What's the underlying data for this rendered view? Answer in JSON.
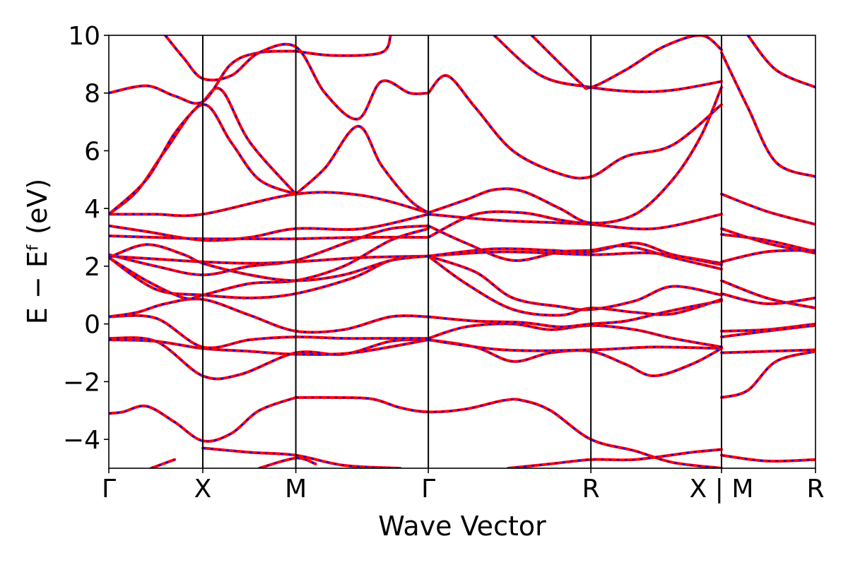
{
  "chart_data": {
    "type": "line",
    "xlabel": "Wave Vector",
    "ylabel": "E − Eᶠ (eV)",
    "ylim": [
      -5,
      10
    ],
    "yticks": [
      -4,
      -2,
      0,
      2,
      4,
      6,
      8,
      10
    ],
    "ytick_labels": [
      "−4",
      "−2",
      "0",
      "2",
      "4",
      "6",
      "8",
      "10"
    ],
    "xlim": [
      0,
      7.52
    ],
    "kpoints": [
      {
        "label": "Γ",
        "x": 0
      },
      {
        "label": "X",
        "x": 1
      },
      {
        "label": "M",
        "x": 1.99
      },
      {
        "label": "Γ",
        "x": 3.4
      },
      {
        "label": "R",
        "x": 5.13
      },
      {
        "label": "X | M",
        "x": 6.52
      },
      {
        "label": "R",
        "x": 7.52
      }
    ],
    "series_colors": {
      "reference": "#ff0000",
      "comparison": "#0000ff"
    },
    "grid": false,
    "bands": [
      {
        "x": [
          0,
          0.15,
          0.4,
          0.7,
          1,
          1.3,
          1.6,
          1.99
        ],
        "y": [
          -3.1,
          -3.05,
          -2.85,
          -3.4,
          -4.05,
          -3.8,
          -3.0,
          -2.55
        ]
      },
      {
        "x": [
          1.99,
          2.4,
          2.8,
          3.1,
          3.4,
          3.8,
          4.2,
          4.4,
          4.7,
          5.13,
          5.6,
          6.0,
          6.52
        ],
        "y": [
          -2.55,
          -2.55,
          -2.6,
          -2.9,
          -3.05,
          -2.95,
          -2.65,
          -2.65,
          -3.0,
          -4.0,
          -4.4,
          -4.8,
          -5.0
        ]
      },
      {
        "x": [
          0,
          0.5,
          1,
          1.4,
          1.99,
          2.5,
          3.0,
          3.4
        ],
        "y": [
          -0.5,
          -0.6,
          -1.8,
          -1.75,
          -1.0,
          -1.05,
          -0.6,
          -0.55
        ]
      },
      {
        "x": [
          3.4,
          3.9,
          4.3,
          4.7,
          5.13,
          5.5,
          5.8,
          6.2,
          6.52
        ],
        "y": [
          -0.55,
          -0.8,
          -1.3,
          -1.0,
          -0.95,
          -1.4,
          -1.8,
          -1.4,
          -0.85
        ]
      },
      {
        "x": [
          0,
          0.5,
          1,
          1.5,
          1.99,
          2.6,
          3.4
        ],
        "y": [
          -0.55,
          -0.6,
          -0.85,
          -0.95,
          -1.05,
          -1.0,
          -0.55
        ]
      },
      {
        "x": [
          3.4,
          4.2,
          5.13,
          5.8,
          6.52
        ],
        "y": [
          -0.55,
          -0.9,
          -0.9,
          -0.8,
          -0.85
        ]
      },
      {
        "x": [
          0,
          0.5,
          1,
          1.5,
          1.99,
          2.5,
          3.0,
          3.4
        ],
        "y": [
          0.25,
          0.2,
          -0.8,
          -0.55,
          -0.45,
          -0.5,
          -0.5,
          -0.5
        ]
      },
      {
        "x": [
          3.4,
          3.8,
          4.3,
          4.7,
          5.13,
          5.6,
          6.0,
          6.52
        ],
        "y": [
          -0.5,
          -0.1,
          0.0,
          -0.2,
          -0.05,
          -0.2,
          -0.5,
          -0.8
        ]
      },
      {
        "x": [
          0,
          0.3,
          0.6,
          1,
          1.5,
          1.99,
          2.5,
          3.0,
          3.4
        ],
        "y": [
          0.25,
          0.4,
          0.7,
          0.85,
          0.3,
          -0.25,
          -0.2,
          0.25,
          0.25
        ]
      },
      {
        "x": [
          3.4,
          3.9,
          4.4,
          4.8,
          5.13,
          5.5,
          5.9,
          6.2,
          6.52
        ],
        "y": [
          0.25,
          0.1,
          0.05,
          -0.1,
          0.0,
          0.1,
          0.4,
          0.6,
          0.8
        ]
      },
      {
        "x": [
          0,
          0.5,
          1,
          1.5,
          1.99,
          2.6,
          3.0,
          3.4
        ],
        "y": [
          2.3,
          1.2,
          1.0,
          0.9,
          1.05,
          1.6,
          2.2,
          2.35
        ]
      },
      {
        "x": [
          3.4,
          3.8,
          4.3,
          4.8,
          5.13,
          5.6,
          6.0,
          6.52
        ],
        "y": [
          2.35,
          1.4,
          0.5,
          0.3,
          0.55,
          0.4,
          0.35,
          0.85
        ]
      },
      {
        "x": [
          0,
          0.4,
          0.8,
          1,
          1.5,
          1.99,
          2.5,
          3.0,
          3.4
        ],
        "y": [
          2.3,
          1.5,
          0.9,
          1.0,
          1.4,
          1.5,
          2.0,
          2.9,
          3.3
        ]
      },
      {
        "x": [
          3.4,
          3.9,
          4.3,
          4.8,
          5.13,
          5.6,
          6.0,
          6.52
        ],
        "y": [
          2.35,
          1.8,
          0.9,
          0.6,
          0.5,
          0.8,
          1.3,
          1.0
        ]
      },
      {
        "x": [
          0,
          0.5,
          1,
          1.5,
          1.99,
          2.6,
          3.0,
          3.4
        ],
        "y": [
          2.4,
          2.0,
          1.7,
          2.0,
          2.2,
          2.9,
          3.3,
          3.4
        ]
      },
      {
        "x": [
          3.4,
          3.8,
          4.3,
          4.8,
          5.13,
          5.5,
          6.0,
          6.52
        ],
        "y": [
          3.4,
          2.8,
          2.2,
          2.5,
          2.55,
          2.7,
          2.3,
          1.9
        ]
      },
      {
        "x": [
          0,
          0.5,
          1,
          1.5,
          1.99,
          2.7,
          3.4
        ],
        "y": [
          2.35,
          2.25,
          2.15,
          2.1,
          2.15,
          2.3,
          2.35
        ]
      },
      {
        "x": [
          3.4,
          4.2,
          5.13,
          5.8,
          6.52
        ],
        "y": [
          2.35,
          2.5,
          2.4,
          2.45,
          2.1
        ]
      },
      {
        "x": [
          0,
          0.4,
          0.8,
          1,
          1.5,
          1.99,
          2.5,
          3.0,
          3.4
        ],
        "y": [
          2.3,
          2.75,
          2.4,
          2.1,
          1.7,
          1.5,
          1.7,
          2.2,
          2.35
        ]
      },
      {
        "x": [
          3.4,
          4.1,
          4.7,
          5.13,
          5.6,
          6.0,
          6.52
        ],
        "y": [
          2.35,
          2.6,
          2.55,
          2.5,
          2.8,
          2.4,
          2.05
        ]
      },
      {
        "x": [
          0,
          0.4,
          1,
          1.5,
          1.99,
          2.7,
          3.4
        ],
        "y": [
          3.4,
          3.2,
          2.9,
          3.0,
          3.3,
          3.3,
          3.8
        ]
      },
      {
        "x": [
          3.4,
          4.1,
          4.8,
          5.13,
          5.8,
          6.52
        ],
        "y": [
          3.8,
          3.6,
          3.5,
          3.45,
          3.3,
          3.8
        ]
      },
      {
        "x": [
          0,
          0.5,
          1,
          1.5,
          1.99,
          2.7,
          3.4
        ],
        "y": [
          3.05,
          3.0,
          2.95,
          2.95,
          2.95,
          3.0,
          3.0
        ]
      },
      {
        "x": [
          3.4,
          3.9,
          4.4,
          4.8,
          5.13
        ],
        "y": [
          3.0,
          3.8,
          3.85,
          3.6,
          3.45
        ]
      },
      {
        "x": [
          0,
          0.5,
          1,
          1.99,
          2.7,
          3.4
        ],
        "y": [
          3.8,
          3.8,
          3.8,
          4.5,
          4.45,
          3.85
        ]
      },
      {
        "x": [
          3.4,
          3.8,
          4.1,
          4.4,
          4.8,
          5.13,
          5.6,
          6.0,
          6.3,
          6.52
        ],
        "y": [
          3.85,
          4.3,
          4.65,
          4.6,
          4.0,
          3.5,
          3.8,
          5.0,
          6.5,
          8.2
        ]
      },
      {
        "x": [
          0,
          0.3,
          0.6,
          1,
          1.3,
          1.6,
          1.99
        ],
        "y": [
          3.8,
          4.6,
          6.0,
          7.6,
          6.3,
          5.0,
          4.5
        ]
      },
      {
        "x": [
          1.99,
          2.3,
          2.65,
          2.9,
          3.2,
          3.4
        ],
        "y": [
          4.5,
          5.4,
          6.85,
          5.5,
          4.3,
          3.85
        ]
      },
      {
        "x": [
          0,
          0.4,
          0.7,
          1,
          1.2,
          1.5,
          1.99
        ],
        "y": [
          3.8,
          5.0,
          6.6,
          7.7,
          8.1,
          6.3,
          4.5
        ]
      },
      {
        "x": [
          0,
          0.4,
          0.7,
          1,
          1.3,
          1.6,
          1.99
        ],
        "y": [
          8.0,
          8.25,
          7.9,
          7.7,
          9.0,
          9.4,
          9.45
        ]
      },
      {
        "x": [
          1.99,
          2.4,
          2.9,
          3.0
        ],
        "y": [
          9.45,
          9.3,
          9.4,
          10.0
        ]
      },
      {
        "x": [
          0.6,
          0.8,
          1,
          1.3,
          1.6,
          1.99,
          2.3,
          2.65,
          2.9,
          3.2,
          3.4
        ],
        "y": [
          10.0,
          9.2,
          8.5,
          8.6,
          9.4,
          9.6,
          8.0,
          7.1,
          8.4,
          8.0,
          8.0
        ]
      },
      {
        "x": [
          3.4,
          3.6,
          3.9,
          4.3,
          4.8,
          5.13,
          5.5,
          6.0,
          6.52
        ],
        "y": [
          8.0,
          8.6,
          7.5,
          6.0,
          5.2,
          5.1,
          5.8,
          6.2,
          7.6
        ]
      },
      {
        "x": [
          4.1,
          4.6,
          5.13,
          5.6,
          6.0,
          6.52
        ],
        "y": [
          10.0,
          8.6,
          8.2,
          8.05,
          8.1,
          8.4
        ]
      },
      {
        "x": [
          4.5,
          5.0,
          5.13,
          5.5,
          5.9,
          6.3,
          6.52
        ],
        "y": [
          10.0,
          8.4,
          8.2,
          8.8,
          9.6,
          10.0,
          9.5
        ]
      },
      {
        "x": [
          6.52,
          6.8,
          7.1,
          7.52
        ],
        "y": [
          9.4,
          7.5,
          5.6,
          5.1
        ]
      },
      {
        "x": [
          6.8,
          7.1,
          7.52
        ],
        "y": [
          10.0,
          8.8,
          8.2
        ]
      },
      {
        "x": [
          6.52,
          7.0,
          7.52
        ],
        "y": [
          4.5,
          3.9,
          3.45
        ]
      },
      {
        "x": [
          6.52,
          7.0,
          7.52
        ],
        "y": [
          3.3,
          2.8,
          2.45
        ]
      },
      {
        "x": [
          6.52,
          7.0,
          7.52
        ],
        "y": [
          3.1,
          2.9,
          2.5
        ]
      },
      {
        "x": [
          6.52,
          7.0,
          7.52
        ],
        "y": [
          2.15,
          2.5,
          2.55
        ]
      },
      {
        "x": [
          6.52,
          7.0,
          7.52
        ],
        "y": [
          1.5,
          0.9,
          0.55
        ]
      },
      {
        "x": [
          6.52,
          7.0,
          7.52
        ],
        "y": [
          1.05,
          0.7,
          0.9
        ]
      },
      {
        "x": [
          6.52,
          7.0,
          7.52
        ],
        "y": [
          -0.25,
          -0.2,
          0.0
        ]
      },
      {
        "x": [
          6.52,
          7.0,
          7.52
        ],
        "y": [
          -0.45,
          -0.25,
          -0.05
        ]
      },
      {
        "x": [
          6.52,
          7.0,
          7.52
        ],
        "y": [
          -1.0,
          -0.95,
          -0.9
        ]
      },
      {
        "x": [
          6.52,
          6.8,
          7.1,
          7.52
        ],
        "y": [
          -2.55,
          -2.3,
          -1.3,
          -0.95
        ]
      },
      {
        "x": [
          6.52,
          7.0,
          7.52
        ],
        "y": [
          -4.55,
          -4.75,
          -4.7
        ]
      },
      {
        "x": [
          1,
          1.5,
          1.99,
          2.5,
          3.1
        ],
        "y": [
          -4.3,
          -4.45,
          -4.55,
          -4.9,
          -5.0
        ]
      },
      {
        "x": [
          1.6,
          1.99,
          2.2
        ],
        "y": [
          -5.0,
          -4.65,
          -4.85
        ]
      },
      {
        "x": [
          0.45,
          0.7
        ],
        "y": [
          -5.0,
          -4.7
        ]
      },
      {
        "x": [
          4.25,
          4.7,
          5.13,
          5.6,
          6.2,
          6.52
        ],
        "y": [
          -5.0,
          -4.85,
          -4.7,
          -4.7,
          -4.45,
          -4.35
        ]
      }
    ]
  }
}
